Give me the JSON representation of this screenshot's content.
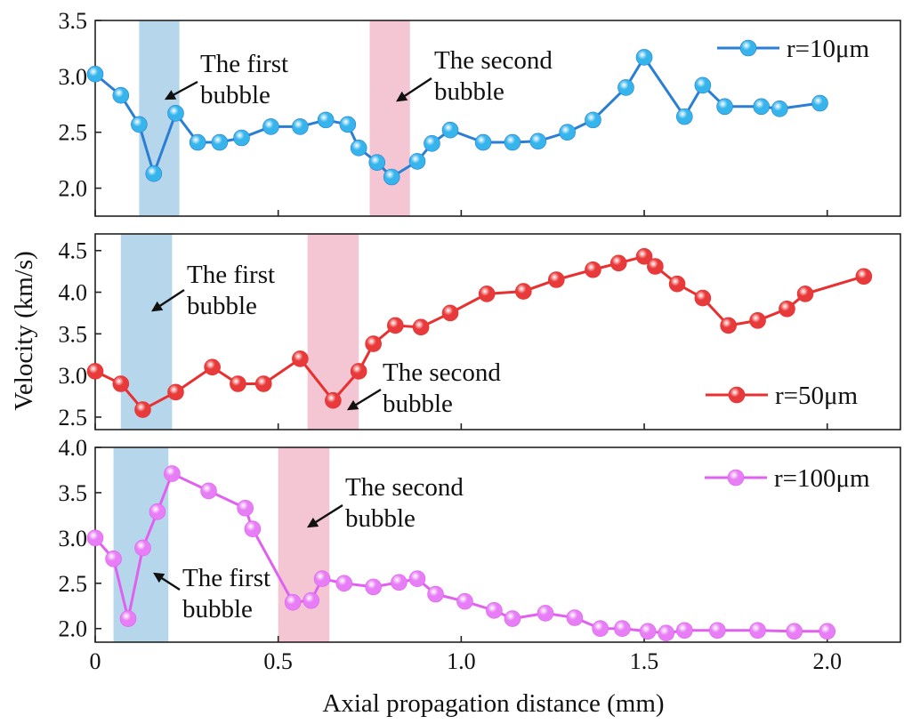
{
  "figure": {
    "ylabel": "Velocity (km/s)",
    "xlabel": "Axial propagation distance (mm)",
    "x_ticks": [
      "0",
      "0.5",
      "1.0",
      "1.5",
      "2.0"
    ]
  },
  "chart_data": [
    {
      "type": "line",
      "series": [
        {
          "name": "r=10μm",
          "color": "#2a7fd4",
          "marker_color": "#36b4ec",
          "x": [
            0.0,
            0.07,
            0.12,
            0.16,
            0.22,
            0.28,
            0.34,
            0.4,
            0.48,
            0.56,
            0.63,
            0.69,
            0.72,
            0.77,
            0.81,
            0.88,
            0.92,
            0.97,
            1.06,
            1.14,
            1.21,
            1.29,
            1.36,
            1.45,
            1.5,
            1.61,
            1.66,
            1.72,
            1.82,
            1.87,
            1.98
          ],
          "values": [
            3.02,
            2.83,
            2.57,
            2.13,
            2.67,
            2.41,
            2.41,
            2.45,
            2.55,
            2.55,
            2.61,
            2.57,
            2.36,
            2.23,
            2.1,
            2.24,
            2.4,
            2.52,
            2.41,
            2.41,
            2.42,
            2.5,
            2.61,
            2.9,
            3.17,
            2.64,
            2.92,
            2.73,
            2.73,
            2.71,
            2.76
          ]
        }
      ],
      "xlim": [
        0,
        2.2
      ],
      "ylim": [
        1.75,
        3.5
      ],
      "y_ticks": [
        "2.0",
        "2.5",
        "3.0",
        "3.5"
      ],
      "y_tick_values": [
        2.0,
        2.5,
        3.0,
        3.5
      ],
      "legend": "top-right",
      "bands": [
        {
          "x0": 0.12,
          "x1": 0.23,
          "color": "#a9cfe8"
        },
        {
          "x0": 0.75,
          "x1": 0.86,
          "color": "#f2bccd"
        }
      ],
      "annotations": [
        {
          "lines": [
            "The first",
            "bubble"
          ]
        },
        {
          "lines": [
            "The second",
            "bubble"
          ]
        }
      ]
    },
    {
      "type": "line",
      "series": [
        {
          "name": "r=50μm",
          "color": "#e83030",
          "marker_color": "#e83a3a",
          "x": [
            0.0,
            0.07,
            0.13,
            0.22,
            0.32,
            0.39,
            0.46,
            0.56,
            0.65,
            0.72,
            0.76,
            0.82,
            0.89,
            0.97,
            1.07,
            1.17,
            1.26,
            1.36,
            1.43,
            1.5,
            1.53,
            1.59,
            1.66,
            1.73,
            1.81,
            1.89,
            1.94,
            2.1
          ],
          "values": [
            3.05,
            2.9,
            2.59,
            2.8,
            3.1,
            2.9,
            2.9,
            3.2,
            2.7,
            3.05,
            3.38,
            3.6,
            3.58,
            3.75,
            3.98,
            4.01,
            4.15,
            4.27,
            4.35,
            4.43,
            4.31,
            4.1,
            3.93,
            3.6,
            3.66,
            3.8,
            3.98,
            4.19
          ]
        }
      ],
      "xlim": [
        0,
        2.2
      ],
      "ylim": [
        2.35,
        4.7
      ],
      "y_ticks": [
        "2.5",
        "3.0",
        "3.5",
        "4.0",
        "4.5"
      ],
      "y_tick_values": [
        2.5,
        3.0,
        3.5,
        4.0,
        4.5
      ],
      "legend": "bottom-right",
      "bands": [
        {
          "x0": 0.07,
          "x1": 0.21,
          "color": "#a9cfe8"
        },
        {
          "x0": 0.58,
          "x1": 0.72,
          "color": "#f2bccd"
        }
      ],
      "annotations": [
        {
          "lines": [
            "The first",
            "bubble"
          ]
        },
        {
          "lines": [
            "The second",
            "bubble"
          ]
        }
      ]
    },
    {
      "type": "line",
      "series": [
        {
          "name": "r=100μm",
          "color": "#e060f0",
          "marker_color": "#e77ef5",
          "x": [
            0.0,
            0.05,
            0.09,
            0.13,
            0.17,
            0.21,
            0.31,
            0.41,
            0.43,
            0.54,
            0.59,
            0.62,
            0.68,
            0.76,
            0.83,
            0.88,
            0.93,
            1.01,
            1.09,
            1.14,
            1.23,
            1.31,
            1.38,
            1.44,
            1.51,
            1.56,
            1.61,
            1.7,
            1.81,
            1.91,
            2.0
          ],
          "values": [
            3.0,
            2.77,
            2.11,
            2.89,
            3.29,
            3.71,
            3.52,
            3.33,
            3.1,
            2.29,
            2.31,
            2.55,
            2.5,
            2.46,
            2.51,
            2.55,
            2.38,
            2.3,
            2.2,
            2.11,
            2.17,
            2.12,
            2.0,
            2.0,
            1.97,
            1.95,
            1.98,
            1.98,
            1.98,
            1.97,
            1.97
          ]
        }
      ],
      "xlim": [
        0,
        2.2
      ],
      "ylim": [
        1.85,
        4.0
      ],
      "y_ticks": [
        "2.0",
        "2.5",
        "3.0",
        "3.5",
        "4.0"
      ],
      "y_tick_values": [
        2.0,
        2.5,
        3.0,
        3.5,
        4.0
      ],
      "legend": "top-right",
      "bands": [
        {
          "x0": 0.05,
          "x1": 0.2,
          "color": "#a9cfe8"
        },
        {
          "x0": 0.5,
          "x1": 0.64,
          "color": "#f2bccd"
        }
      ],
      "annotations": [
        {
          "lines": [
            "The second",
            "bubble"
          ]
        },
        {
          "lines": [
            "The first",
            "bubble"
          ]
        }
      ]
    }
  ]
}
